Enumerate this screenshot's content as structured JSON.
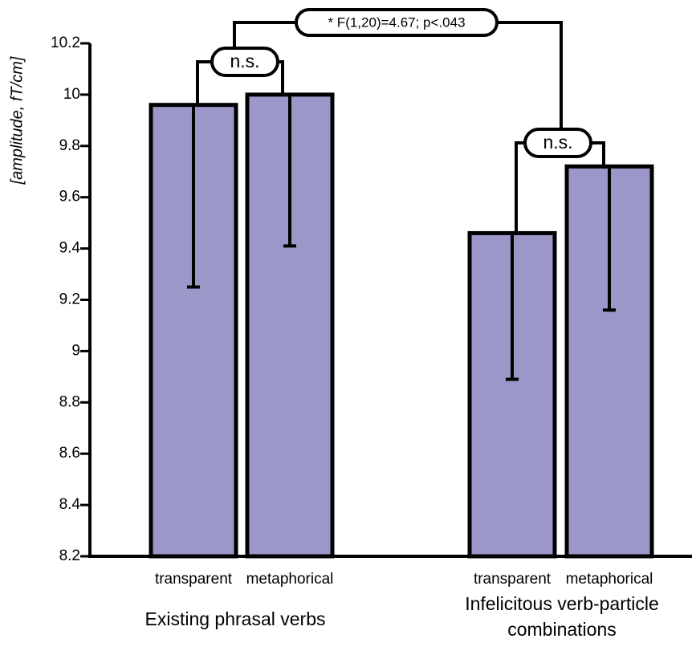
{
  "chart_data": {
    "type": "bar",
    "ylabel": "[amplitude, fT/cm]",
    "ylim": [
      8.2,
      10.2
    ],
    "yticks": [
      "8.2",
      "8.4",
      "8.6",
      "8.8",
      "9",
      "9.2",
      "9.4",
      "9.6",
      "9.8",
      "10",
      "10.2"
    ],
    "groups": [
      {
        "label": "Existing phrasal verbs",
        "bars": [
          {
            "label": "transparent",
            "value": 9.96,
            "error_low": 9.25
          },
          {
            "label": "metaphorical",
            "value": 10.0,
            "error_low": 9.41
          }
        ]
      },
      {
        "label": "Infelicitous verb-particle combinations",
        "bars": [
          {
            "label": "transparent",
            "value": 9.46,
            "error_low": 8.89
          },
          {
            "label": "metaphorical",
            "value": 9.72,
            "error_low": 9.16
          }
        ]
      }
    ],
    "annotations": {
      "group_1_comparison": "n.s.",
      "group_2_comparison": "n.s.",
      "between_groups": "* F(1,20)=4.67; p<.043"
    },
    "colors": {
      "bar_fill": "#9b97c9",
      "bar_stroke": "#000000"
    }
  }
}
